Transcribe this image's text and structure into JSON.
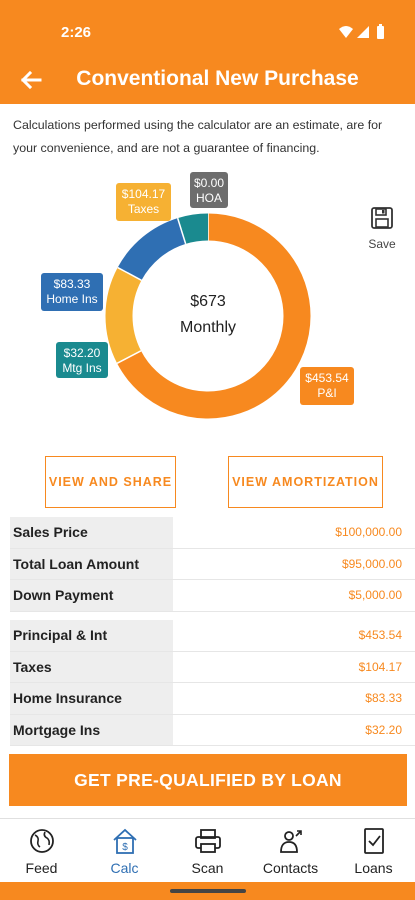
{
  "status": {
    "time": "2:26"
  },
  "header": {
    "title": "Conventional New Purchase"
  },
  "disclaimer": "Calculations performed using the calculator are an estimate, are for your convenience, and are not a guarantee of financing.",
  "chart_data": {
    "type": "pie",
    "center_value": "$673",
    "center_label": "Monthly",
    "categories": [
      "P&I",
      "HOA",
      "Taxes",
      "Home Ins",
      "Mtg Ins"
    ],
    "values": [
      453.54,
      0.0,
      104.17,
      83.33,
      32.2
    ],
    "labels": [
      "$453.54",
      "$0.00",
      "$104.17",
      "$83.33",
      "$32.20"
    ],
    "colors": [
      "#f7891f",
      "#6d6d6d",
      "#f6b133",
      "#2f6fb3",
      "#1a8a8f"
    ]
  },
  "save": {
    "label": "Save"
  },
  "buttons": {
    "share": "VIEW AND SHARE",
    "amortization": "VIEW AMORTIZATION"
  },
  "loan_table": [
    {
      "label": "Sales Price",
      "value": "$100,000.00"
    },
    {
      "label": "Total Loan Amount",
      "value": "$95,000.00"
    },
    {
      "label": "Down Payment",
      "value": "$5,000.00"
    }
  ],
  "payment_table": [
    {
      "label": "Principal & Int",
      "value": "$453.54"
    },
    {
      "label": "Taxes",
      "value": "$104.17"
    },
    {
      "label": "Home Insurance",
      "value": "$83.33"
    },
    {
      "label": "Mortgage Ins",
      "value": "$32.20"
    }
  ],
  "cta": {
    "label": "GET PRE-QUALIFIED BY LOAN"
  },
  "nav": [
    {
      "label": "Feed",
      "icon": "globe-icon"
    },
    {
      "label": "Calc",
      "icon": "calculator-house-icon"
    },
    {
      "label": "Scan",
      "icon": "scanner-icon"
    },
    {
      "label": "Contacts",
      "icon": "contacts-icon"
    },
    {
      "label": "Loans",
      "icon": "loans-document-icon"
    }
  ],
  "colors": {
    "accent": "#f7891f",
    "active_nav": "#2f6fb3"
  }
}
